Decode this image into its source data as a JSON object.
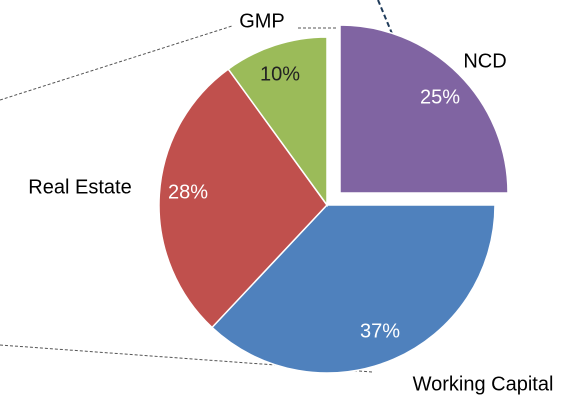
{
  "chart_data": {
    "type": "pie",
    "categories": [
      "NCD",
      "Working Capital",
      "Real Estate",
      "GMP"
    ],
    "values": [
      25,
      37,
      28,
      10
    ],
    "value_labels": [
      "25%",
      "37%",
      "28%",
      "10%"
    ],
    "colors": [
      "#8064a2",
      "#4f81bd",
      "#c0504d",
      "#9bbb59"
    ]
  }
}
